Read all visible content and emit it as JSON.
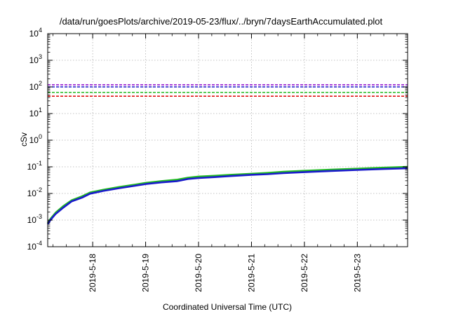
{
  "chart_data": {
    "type": "line",
    "title": "/data/run/goesPlots/archive/2019-05-23/flux/../bryn/7daysEarthAccumulated.plot",
    "xlabel": "Coordinated Universal Time (UTC)",
    "ylabel": "cSv",
    "x_range_days": [
      17.15,
      23.95
    ],
    "x_ticks": [
      {
        "value": 18,
        "label": "2019-5-18"
      },
      {
        "value": 19,
        "label": "2019-5-19"
      },
      {
        "value": 20,
        "label": "2019-5-20"
      },
      {
        "value": 21,
        "label": "2019-5-21"
      },
      {
        "value": 22,
        "label": "2019-5-22"
      },
      {
        "value": 23,
        "label": "2019-5-23"
      }
    ],
    "y_scale": "log",
    "ylim": [
      0.0001,
      10000
    ],
    "y_ticks": [
      {
        "value": 0.0001,
        "base": "10",
        "exp": "-4"
      },
      {
        "value": 0.001,
        "base": "10",
        "exp": "-3"
      },
      {
        "value": 0.01,
        "base": "10",
        "exp": "-2"
      },
      {
        "value": 0.1,
        "base": "10",
        "exp": "-1"
      },
      {
        "value": 1,
        "base": "10",
        "exp": "0"
      },
      {
        "value": 10,
        "base": "10",
        "exp": "1"
      },
      {
        "value": 100,
        "base": "10",
        "exp": "2"
      },
      {
        "value": 1000,
        "base": "10",
        "exp": "3"
      },
      {
        "value": 10000,
        "base": "10",
        "exp": "4"
      }
    ],
    "grid": true,
    "series": [
      {
        "color": "#22bb22",
        "style": "solid",
        "x": [
          17.15,
          17.2,
          17.3,
          17.45,
          17.6,
          17.8,
          17.95,
          18.2,
          18.5,
          18.8,
          19.0,
          19.3,
          19.6,
          19.8,
          20.0,
          20.3,
          20.6,
          21.0,
          21.3,
          21.6,
          22.0,
          22.5,
          23.0,
          23.5,
          23.95
        ],
        "y": [
          0.00075,
          0.0011,
          0.0019,
          0.0034,
          0.0055,
          0.0078,
          0.0108,
          0.0137,
          0.0175,
          0.0215,
          0.025,
          0.029,
          0.033,
          0.039,
          0.043,
          0.046,
          0.05,
          0.055,
          0.059,
          0.065,
          0.071,
          0.078,
          0.085,
          0.093,
          0.1
        ]
      },
      {
        "color": "#1a1acc",
        "style": "solid",
        "x": [
          17.15,
          17.2,
          17.3,
          17.45,
          17.6,
          17.8,
          17.95,
          18.2,
          18.5,
          18.8,
          19.0,
          19.3,
          19.6,
          19.8,
          20.0,
          20.3,
          20.6,
          21.0,
          21.3,
          21.6,
          22.0,
          22.5,
          23.0,
          23.5,
          23.95
        ],
        "y": [
          0.0007,
          0.001,
          0.0017,
          0.003,
          0.005,
          0.007,
          0.0098,
          0.0124,
          0.0158,
          0.0195,
          0.0225,
          0.026,
          0.029,
          0.035,
          0.038,
          0.041,
          0.045,
          0.05,
          0.053,
          0.058,
          0.063,
          0.07,
          0.076,
          0.083,
          0.088
        ]
      },
      {
        "color": "#8800cc",
        "style": "dashed",
        "x": [
          17.15,
          23.95
        ],
        "y": [
          120,
          120
        ]
      },
      {
        "color": "#1a1acc",
        "style": "dashed",
        "x": [
          17.15,
          23.95
        ],
        "y": [
          100,
          100
        ]
      },
      {
        "color": "#22bb22",
        "style": "dashed",
        "x": [
          17.15,
          23.95
        ],
        "y": [
          62,
          62
        ]
      },
      {
        "color": "#dd0000",
        "style": "dashed",
        "x": [
          17.15,
          23.95
        ],
        "y": [
          45,
          45
        ]
      }
    ]
  }
}
